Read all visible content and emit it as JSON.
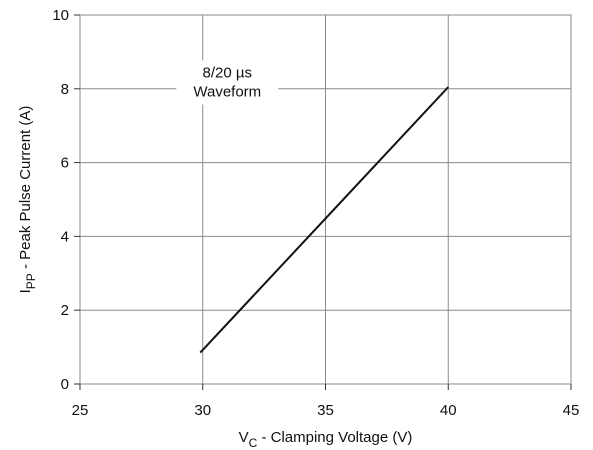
{
  "chart_data": {
    "type": "line",
    "title": "",
    "xlabel": {
      "main": "V",
      "subscript": "C",
      "rest": " - Clamping Voltage (V)"
    },
    "ylabel": {
      "main": "I",
      "subscript": "PP",
      "rest": " - Peak Pulse Current (A)"
    },
    "xlim": [
      25,
      45
    ],
    "ylim": [
      0,
      10
    ],
    "xticks": [
      25,
      30,
      35,
      40,
      45
    ],
    "yticks": [
      0,
      2,
      4,
      6,
      8,
      10
    ],
    "grid": true,
    "legend": "none",
    "annotation": {
      "lines": [
        "8/20 µs",
        "Waveform"
      ],
      "anchor_x": 31,
      "anchor_y": 7.9
    },
    "series": [
      {
        "color": "#111111",
        "x": [
          29.9,
          40.0
        ],
        "y": [
          0.85,
          8.05
        ]
      }
    ]
  }
}
